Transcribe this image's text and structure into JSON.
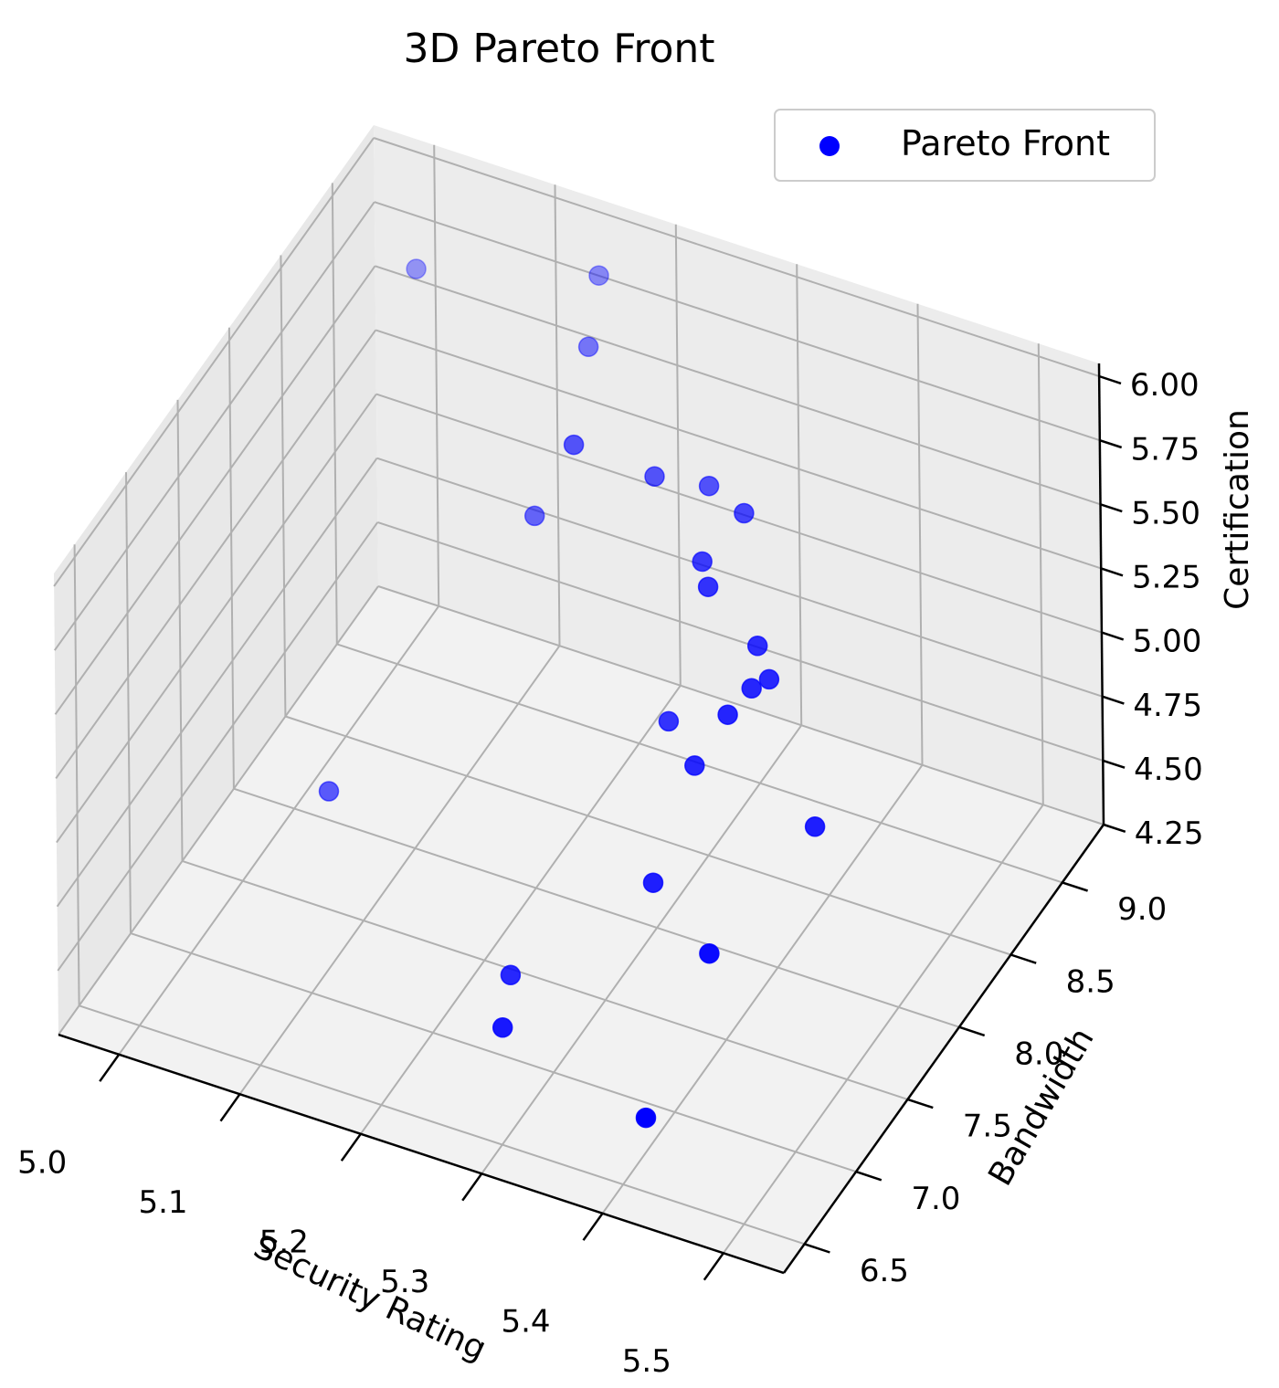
{
  "chart_data": {
    "type": "scatter",
    "projection": "3d",
    "title": "3D Pareto Front",
    "xlabel": "Security Rating",
    "ylabel": "Bandwidth",
    "zlabel": "Certification",
    "xlim": [
      4.95,
      5.55
    ],
    "ylim": [
      6.3,
      9.4
    ],
    "zlim": [
      4.25,
      6.05
    ],
    "x_ticks": [
      "5.0",
      "5.1",
      "5.2",
      "5.3",
      "5.4",
      "5.5"
    ],
    "y_ticks": [
      "6.5",
      "7.0",
      "7.5",
      "8.0",
      "8.5",
      "9.0"
    ],
    "z_ticks": [
      "4.25",
      "4.50",
      "4.75",
      "5.00",
      "5.25",
      "5.50",
      "5.75",
      "6.00"
    ],
    "grid": true,
    "legend": {
      "position": "top-right"
    },
    "series": [
      {
        "name": "Pareto Front",
        "color": "#0000ff",
        "points": [
          {
            "x": 5.01,
            "y": 9.102,
            "z": 5.75
          },
          {
            "x": 5.04,
            "y": 7.872,
            "z": 4.452
          },
          {
            "x": 5.161,
            "y": 9.108,
            "z": 5.955
          },
          {
            "x": 5.181,
            "y": 8.771,
            "z": 5.898
          },
          {
            "x": 5.171,
            "y": 8.356,
            "z": 5.457
          },
          {
            "x": 5.227,
            "y": 8.092,
            "z": 5.97
          },
          {
            "x": 5.283,
            "y": 8.216,
            "z": 5.863
          },
          {
            "x": 5.327,
            "y": 8.229,
            "z": 5.887
          },
          {
            "x": 5.368,
            "y": 8.088,
            "z": 5.924
          },
          {
            "x": 5.354,
            "y": 7.846,
            "z": 5.85
          },
          {
            "x": 5.374,
            "y": 7.669,
            "z": 5.882
          },
          {
            "x": 5.417,
            "y": 7.64,
            "z": 5.735
          },
          {
            "x": 5.431,
            "y": 7.587,
            "z": 5.656
          },
          {
            "x": 5.41,
            "y": 7.43,
            "z": 5.574
          },
          {
            "x": 5.423,
            "y": 7.51,
            "z": 5.652
          },
          {
            "x": 5.345,
            "y": 7.613,
            "z": 5.344
          },
          {
            "x": 5.382,
            "y": 7.43,
            "z": 5.332
          },
          {
            "x": 5.482,
            "y": 7.424,
            "z": 5.252
          },
          {
            "x": 5.438,
            "y": 6.908,
            "z": 4.98
          },
          {
            "x": 5.366,
            "y": 7.208,
            "z": 4.975
          },
          {
            "x": 5.248,
            "y": 7.195,
            "z": 4.439
          },
          {
            "x": 5.265,
            "y": 6.918,
            "z": 4.417
          },
          {
            "x": 5.406,
            "y": 6.655,
            "z": 4.432
          }
        ]
      }
    ]
  }
}
